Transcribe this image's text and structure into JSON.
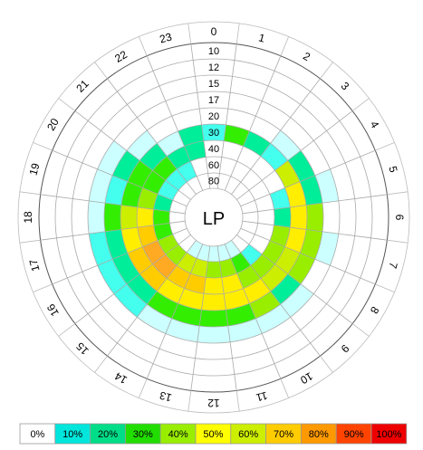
{
  "chart_data": {
    "type": "heatmap",
    "center_label": "LP",
    "hours": [
      "0",
      "1",
      "2",
      "3",
      "4",
      "5",
      "6",
      "7",
      "8",
      "9",
      "10",
      "11",
      "12",
      "13",
      "14",
      "15",
      "16",
      "17",
      "18",
      "19",
      "20",
      "21",
      "22",
      "23"
    ],
    "rings": [
      "10",
      "12",
      "15",
      "17",
      "20",
      "30",
      "40",
      "60",
      "80"
    ],
    "legend": {
      "labels": [
        "0%",
        "10%",
        "20%",
        "30%",
        "40%",
        "50%",
        "60%",
        "70%",
        "80%",
        "90%",
        "100%"
      ],
      "colors": [
        "#ffffff",
        "#00e6dc",
        "#00dd88",
        "#22dd00",
        "#99ee00",
        "#ffff00",
        "#ccee00",
        "#ffcc00",
        "#ff9900",
        "#ff4400",
        "#ee0000"
      ]
    },
    "colors_by_level": [
      "#ffffff",
      "#ccffff",
      "#44ffee",
      "#00ee99",
      "#33ee00",
      "#99ee00",
      "#ccee00",
      "#ffee00",
      "#ffcc00",
      "#ffaa22",
      "#ff4400"
    ],
    "cells": [
      [
        0,
        0,
        0,
        0,
        0,
        2,
        0,
        0,
        0
      ],
      [
        0,
        0,
        0,
        0,
        0,
        4,
        0,
        0,
        0
      ],
      [
        0,
        0,
        0,
        0,
        0,
        3,
        0,
        0,
        0
      ],
      [
        0,
        0,
        0,
        0,
        1,
        2,
        0,
        0,
        0
      ],
      [
        0,
        0,
        0,
        0,
        3,
        6,
        0,
        0,
        0
      ],
      [
        0,
        0,
        0,
        1,
        3,
        7,
        2,
        0,
        0
      ],
      [
        0,
        0,
        0,
        0,
        5,
        7,
        3,
        0,
        0
      ],
      [
        0,
        0,
        0,
        1,
        5,
        7,
        5,
        0,
        0
      ],
      [
        0,
        0,
        0,
        0,
        5,
        6,
        5,
        0,
        0
      ],
      [
        0,
        0,
        0,
        1,
        3,
        6,
        5,
        2,
        0
      ],
      [
        0,
        0,
        0,
        1,
        5,
        7,
        5,
        4,
        1
      ],
      [
        0,
        0,
        0,
        1,
        4,
        7,
        7,
        5,
        1
      ],
      [
        0,
        0,
        0,
        1,
        4,
        7,
        7,
        5,
        1
      ],
      [
        0,
        0,
        0,
        1,
        4,
        7,
        8,
        6,
        1
      ],
      [
        0,
        0,
        0,
        1,
        4,
        7,
        8,
        6,
        1
      ],
      [
        0,
        0,
        0,
        2,
        3,
        8,
        9,
        5,
        0
      ],
      [
        0,
        0,
        0,
        2,
        3,
        8,
        9,
        5,
        0
      ],
      [
        0,
        0,
        0,
        2,
        3,
        7,
        8,
        4,
        0
      ],
      [
        0,
        0,
        0,
        1,
        4,
        6,
        7,
        4,
        0
      ],
      [
        0,
        0,
        0,
        1,
        2,
        4,
        5,
        3,
        0
      ],
      [
        0,
        0,
        0,
        1,
        3,
        4,
        4,
        2,
        0
      ],
      [
        0,
        0,
        0,
        0,
        1,
        3,
        4,
        2,
        0
      ],
      [
        0,
        0,
        0,
        0,
        0,
        1,
        3,
        2,
        0
      ],
      [
        0,
        0,
        0,
        0,
        0,
        3,
        3,
        0,
        0
      ]
    ]
  }
}
